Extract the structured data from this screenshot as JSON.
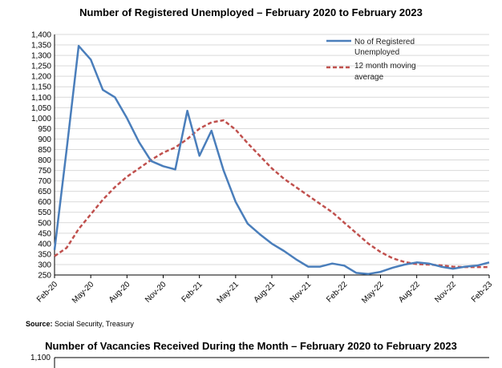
{
  "chart_data": [
    {
      "type": "line",
      "title": "Number of Registered Unemployed – February 2020 to February 2023",
      "xlabel": "",
      "ylabel": "",
      "ylim": [
        250,
        1400
      ],
      "yticks": [
        1400,
        1350,
        1300,
        1250,
        1200,
        1150,
        1100,
        1050,
        1000,
        950,
        900,
        850,
        800,
        750,
        700,
        650,
        600,
        550,
        500,
        450,
        400,
        350,
        300,
        250
      ],
      "ytick_labels": [
        "1,400",
        "1,350",
        "1,300",
        "1,250",
        "1,200",
        "1,150",
        "1,100",
        "1,050",
        "1,000",
        "950",
        "900",
        "850",
        "800",
        "750",
        "700",
        "650",
        "600",
        "550",
        "500",
        "450",
        "400",
        "350",
        "300",
        "250"
      ],
      "x": [
        "Feb-20",
        "Mar-20",
        "Apr-20",
        "May-20",
        "Jun-20",
        "Jul-20",
        "Aug-20",
        "Sep-20",
        "Oct-20",
        "Nov-20",
        "Dec-20",
        "Jan-21",
        "Feb-21",
        "Mar-21",
        "Apr-21",
        "May-21",
        "Jun-21",
        "Jul-21",
        "Aug-21",
        "Sep-21",
        "Oct-21",
        "Nov-21",
        "Dec-21",
        "Jan-22",
        "Feb-22",
        "Mar-22",
        "Apr-22",
        "May-22",
        "Jun-22",
        "Jul-22",
        "Aug-22",
        "Sep-22",
        "Oct-22",
        "Nov-22",
        "Dec-22",
        "Jan-23",
        "Feb-23"
      ],
      "x_tick_labels": [
        "Feb-20",
        "May-20",
        "Aug-20",
        "Nov-20",
        "Feb-21",
        "May-21",
        "Aug-21",
        "Nov-21",
        "Feb-22",
        "May-22",
        "Aug-22",
        "Nov-22",
        "Feb-23"
      ],
      "series": [
        {
          "name": "No of Registered Unemployed",
          "style": "solid",
          "color": "#4a7ebb",
          "values": [
            370,
            850,
            1345,
            1280,
            1135,
            1100,
            1000,
            885,
            795,
            770,
            755,
            1035,
            820,
            940,
            750,
            600,
            495,
            445,
            400,
            365,
            325,
            290,
            290,
            305,
            295,
            260,
            255,
            265,
            285,
            300,
            310,
            305,
            290,
            280,
            290,
            295,
            310
          ]
        },
        {
          "name": "12 month moving average",
          "style": "dashed",
          "color": "#c0504d",
          "values": [
            340,
            380,
            470,
            540,
            610,
            670,
            720,
            760,
            800,
            835,
            860,
            900,
            950,
            980,
            990,
            945,
            880,
            820,
            760,
            710,
            670,
            630,
            590,
            550,
            500,
            450,
            400,
            360,
            330,
            312,
            302,
            300,
            296,
            290,
            288,
            288,
            288
          ]
        }
      ],
      "legend": "top-right",
      "grid": true
    },
    {
      "type": "line",
      "title": "Number of Vacancies Received During the Month – February 2020 to February 2023",
      "ytick_labels": [
        "1,100"
      ]
    }
  ],
  "source": {
    "label": "Source:",
    "text": "Social Security, Treasury"
  },
  "colors": {
    "unemployed_line": "#4a7ebb",
    "moving_average_line": "#c0504d",
    "grid": "#d9d9d9"
  }
}
